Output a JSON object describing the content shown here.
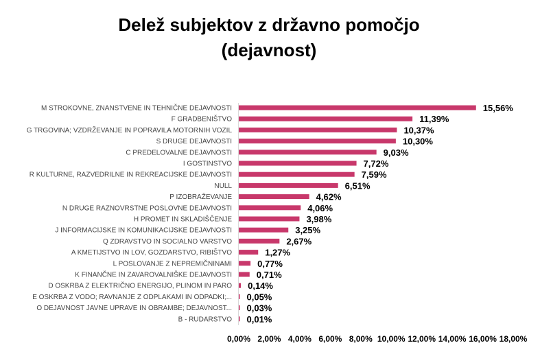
{
  "chart_data": {
    "type": "bar",
    "orientation": "horizontal",
    "title_lines": [
      "Delež subjektov z državno pomočjo",
      "(dejavnost)"
    ],
    "bar_color": "#c8386b",
    "categories": [
      "M STROKOVNE, ZNANSTVENE IN TEHNIČNE DEJAVNOSTI",
      "F GRADBENIŠTVO",
      "G TRGOVINA; VZDRŽEVANJE IN POPRAVILA MOTORNIH VOZIL",
      "S DRUGE DEJAVNOSTI",
      "C PREDELOVALNE DEJAVNOSTI",
      "I GOSTINSTVO",
      "R KULTURNE, RAZVEDRILNE IN REKREACIJSKE DEJAVNOSTI",
      "NULL",
      "P IZOBRAŽEVANJE",
      "N DRUGE RAZNOVRSTNE POSLOVNE DEJAVNOSTI",
      "H PROMET IN SKLADIŠČENJE",
      "J INFORMACIJSKE IN KOMUNIKACIJSKE DEJAVNOSTI",
      "Q ZDRAVSTVO IN SOCIALNO VARSTVO",
      "A KMETIJSTVO IN LOV, GOZDARSTVO, RIBIŠTVO",
      "L POSLOVANJE Z NEPREMIČNINAMI",
      "K FINANČNE IN ZAVAROVALNIŠKE DEJAVNOSTI",
      "D OSKRBA Z ELEKTRIČNO ENERGIJO, PLINOM IN PARO",
      "E OSKRBA Z VODO; RAVNANJE Z ODPLAKAMI IN ODPADKI;...",
      "O DEJAVNOST JAVNE UPRAVE IN OBRAMBE; DEJAVNOST...",
      "B - RUDARSTVO"
    ],
    "values": [
      15.56,
      11.39,
      10.37,
      10.3,
      9.03,
      7.72,
      7.59,
      6.51,
      4.62,
      4.06,
      3.98,
      3.25,
      2.67,
      1.27,
      0.77,
      0.71,
      0.14,
      0.05,
      0.03,
      0.01
    ],
    "data_labels": [
      "15,56%",
      "11,39%",
      "10,37%",
      "10,30%",
      "9,03%",
      "7,72%",
      "7,59%",
      "6,51%",
      "4,62%",
      "4,06%",
      "3,98%",
      "3,25%",
      "2,67%",
      "1,27%",
      "0,77%",
      "0,71%",
      "0,14%",
      "0,05%",
      "0,03%",
      "0,01%"
    ],
    "x_ticks": [
      0,
      2,
      4,
      6,
      8,
      10,
      12,
      14,
      16,
      18
    ],
    "x_tick_labels": [
      "0,00%",
      "2,00%",
      "4,00%",
      "6,00%",
      "8,00%",
      "10,00%",
      "12,00%",
      "14,00%",
      "16,00%",
      "18,00%"
    ],
    "xlim": [
      0,
      18
    ],
    "grid": false,
    "legend": "none"
  }
}
